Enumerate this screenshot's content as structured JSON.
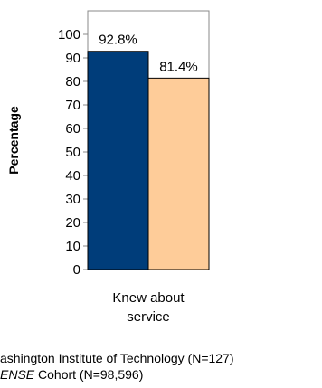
{
  "chart_data": {
    "type": "bar",
    "categories": [
      "Knew about service"
    ],
    "category_label_lines": [
      "Knew about",
      "service"
    ],
    "series": [
      {
        "name": "ashington Institute of Technology (N=127)",
        "values": [
          92.8
        ],
        "color": "#003d7a"
      },
      {
        "name": "Cohort (N=98,596)",
        "name_prefix": "ENSE",
        "values": [
          81.4
        ],
        "color": "#fecc99"
      }
    ],
    "data_labels": [
      "92.8%",
      "81.4%"
    ],
    "ylabel": "Percentage",
    "ylim": [
      0,
      110
    ],
    "yticks": [
      0,
      10,
      20,
      30,
      40,
      50,
      60,
      70,
      80,
      90,
      100
    ],
    "grid": false,
    "legend_position": "bottom"
  }
}
